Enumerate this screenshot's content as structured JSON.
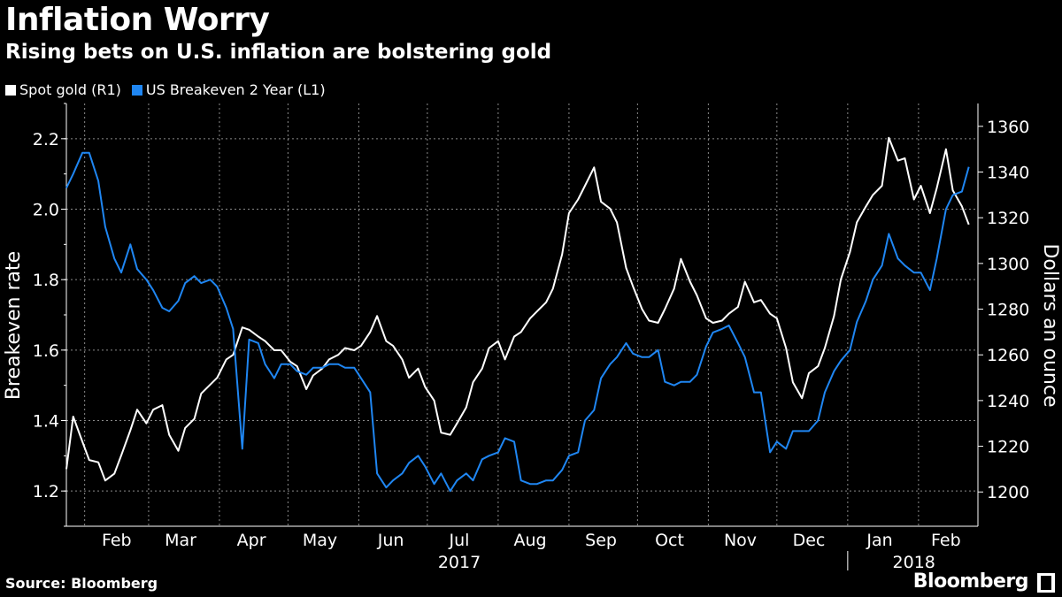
{
  "header": {
    "title": "Inflation Worry",
    "subtitle": "Rising bets on U.S. inflation are bolstering gold"
  },
  "footer": {
    "source": "Source: Bloomberg",
    "brand": "Bloomberg"
  },
  "colors": {
    "gold": "#ffffff",
    "breakeven": "#1f86f2",
    "grid": "#8a8a8a",
    "background": "#000000"
  },
  "chart_data": {
    "type": "line",
    "title": "Inflation Worry",
    "subtitle": "Rising bets on U.S. inflation are bolstering gold",
    "ylabel_left": "Breakeven rate",
    "ylabel_right": "Dollars an ounce",
    "ylim_left": [
      1.1,
      2.3
    ],
    "ylim_right": [
      1185,
      1370
    ],
    "yticks_left": [
      "1.2",
      "1.4",
      "1.6",
      "1.8",
      "2.0",
      "2.2"
    ],
    "yticks_right": [
      "1200",
      "1220",
      "1240",
      "1260",
      "1280",
      "1300",
      "1320",
      "1340",
      "1360"
    ],
    "xlim": [
      "2017-01-24",
      "2018-02-27"
    ],
    "x_month_labels": [
      {
        "label": "Feb",
        "date": "2017-02-15"
      },
      {
        "label": "Mar",
        "date": "2017-03-15"
      },
      {
        "label": "Apr",
        "date": "2017-04-15"
      },
      {
        "label": "May",
        "date": "2017-05-15"
      },
      {
        "label": "Jun",
        "date": "2017-06-15"
      },
      {
        "label": "Jul",
        "date": "2017-07-15"
      },
      {
        "label": "Aug",
        "date": "2017-08-15"
      },
      {
        "label": "Sep",
        "date": "2017-09-15"
      },
      {
        "label": "Oct",
        "date": "2017-10-15"
      },
      {
        "label": "Nov",
        "date": "2017-11-15"
      },
      {
        "label": "Dec",
        "date": "2017-12-15"
      },
      {
        "label": "Jan",
        "date": "2018-01-15"
      },
      {
        "label": "Feb",
        "date": "2018-02-13"
      }
    ],
    "x_year_labels": [
      {
        "label": "2017",
        "date": "2017-07-15"
      },
      {
        "label": "2018",
        "date": "2018-01-30"
      }
    ],
    "legend_position": "top-left",
    "grid": true,
    "series": [
      {
        "name": "Spot gold (R1)",
        "axis": "right",
        "color": "#ffffff",
        "x": [
          "2017-01-24",
          "2017-01-27",
          "2017-01-31",
          "2017-02-03",
          "2017-02-07",
          "2017-02-10",
          "2017-02-14",
          "2017-02-17",
          "2017-02-21",
          "2017-02-24",
          "2017-02-28",
          "2017-03-03",
          "2017-03-07",
          "2017-03-10",
          "2017-03-14",
          "2017-03-17",
          "2017-03-21",
          "2017-03-24",
          "2017-03-28",
          "2017-03-31",
          "2017-04-04",
          "2017-04-07",
          "2017-04-11",
          "2017-04-14",
          "2017-04-18",
          "2017-04-21",
          "2017-04-25",
          "2017-04-28",
          "2017-05-02",
          "2017-05-05",
          "2017-05-09",
          "2017-05-12",
          "2017-05-16",
          "2017-05-19",
          "2017-05-23",
          "2017-05-26",
          "2017-05-30",
          "2017-06-02",
          "2017-06-06",
          "2017-06-09",
          "2017-06-13",
          "2017-06-16",
          "2017-06-20",
          "2017-06-23",
          "2017-06-27",
          "2017-06-30",
          "2017-07-04",
          "2017-07-07",
          "2017-07-11",
          "2017-07-14",
          "2017-07-18",
          "2017-07-21",
          "2017-07-25",
          "2017-07-28",
          "2017-08-01",
          "2017-08-04",
          "2017-08-08",
          "2017-08-11",
          "2017-08-15",
          "2017-08-18",
          "2017-08-22",
          "2017-08-25",
          "2017-08-29",
          "2017-09-01",
          "2017-09-05",
          "2017-09-08",
          "2017-09-12",
          "2017-09-15",
          "2017-09-19",
          "2017-09-22",
          "2017-09-26",
          "2017-09-29",
          "2017-10-03",
          "2017-10-06",
          "2017-10-10",
          "2017-10-13",
          "2017-10-17",
          "2017-10-20",
          "2017-10-24",
          "2017-10-27",
          "2017-10-31",
          "2017-11-03",
          "2017-11-07",
          "2017-11-10",
          "2017-11-14",
          "2017-11-17",
          "2017-11-21",
          "2017-11-24",
          "2017-11-28",
          "2017-12-01",
          "2017-12-05",
          "2017-12-08",
          "2017-12-12",
          "2017-12-15",
          "2017-12-19",
          "2017-12-22",
          "2017-12-26",
          "2017-12-29",
          "2018-01-02",
          "2018-01-05",
          "2018-01-09",
          "2018-01-12",
          "2018-01-16",
          "2018-01-19",
          "2018-01-23",
          "2018-01-26",
          "2018-01-30",
          "2018-02-02",
          "2018-02-06",
          "2018-02-09",
          "2018-02-13",
          "2018-02-16",
          "2018-02-20",
          "2018-02-23"
        ],
        "values": [
          1210,
          1233,
          1222,
          1214,
          1213,
          1205,
          1208,
          1216,
          1227,
          1236,
          1230,
          1236,
          1238,
          1225,
          1218,
          1228,
          1232,
          1243,
          1247,
          1250,
          1258,
          1260,
          1272,
          1271,
          1268,
          1266,
          1262,
          1262,
          1257,
          1255,
          1245,
          1251,
          1254,
          1258,
          1260,
          1263,
          1262,
          1264,
          1270,
          1277,
          1266,
          1264,
          1258,
          1250,
          1254,
          1246,
          1240,
          1226,
          1225,
          1230,
          1237,
          1248,
          1254,
          1263,
          1266,
          1258,
          1268,
          1270,
          1276,
          1279,
          1283,
          1289,
          1304,
          1322,
          1328,
          1334,
          1342,
          1327,
          1324,
          1318,
          1298,
          1290,
          1280,
          1275,
          1274,
          1280,
          1289,
          1302,
          1292,
          1286,
          1276,
          1274,
          1275,
          1278,
          1281,
          1292,
          1283,
          1284,
          1278,
          1276,
          1263,
          1248,
          1241,
          1252,
          1255,
          1263,
          1277,
          1293,
          1305,
          1318,
          1325,
          1330,
          1334,
          1355,
          1345,
          1346,
          1328,
          1334,
          1322,
          1333,
          1350,
          1332,
          1325,
          1317
        ]
      },
      {
        "name": "US Breakeven 2 Year (L1)",
        "axis": "left",
        "color": "#1f86f2",
        "x": [
          "2017-01-24",
          "2017-01-27",
          "2017-01-31",
          "2017-02-03",
          "2017-02-07",
          "2017-02-10",
          "2017-02-14",
          "2017-02-17",
          "2017-02-21",
          "2017-02-24",
          "2017-02-28",
          "2017-03-03",
          "2017-03-07",
          "2017-03-10",
          "2017-03-14",
          "2017-03-17",
          "2017-03-21",
          "2017-03-24",
          "2017-03-28",
          "2017-03-31",
          "2017-04-04",
          "2017-04-07",
          "2017-04-11",
          "2017-04-14",
          "2017-04-18",
          "2017-04-21",
          "2017-04-25",
          "2017-04-28",
          "2017-05-02",
          "2017-05-05",
          "2017-05-09",
          "2017-05-12",
          "2017-05-16",
          "2017-05-19",
          "2017-05-23",
          "2017-05-26",
          "2017-05-30",
          "2017-06-02",
          "2017-06-06",
          "2017-06-09",
          "2017-06-13",
          "2017-06-16",
          "2017-06-20",
          "2017-06-23",
          "2017-06-27",
          "2017-06-30",
          "2017-07-04",
          "2017-07-07",
          "2017-07-11",
          "2017-07-14",
          "2017-07-18",
          "2017-07-21",
          "2017-07-25",
          "2017-07-28",
          "2017-08-01",
          "2017-08-04",
          "2017-08-08",
          "2017-08-11",
          "2017-08-15",
          "2017-08-18",
          "2017-08-22",
          "2017-08-25",
          "2017-08-29",
          "2017-09-01",
          "2017-09-05",
          "2017-09-08",
          "2017-09-12",
          "2017-09-15",
          "2017-09-19",
          "2017-09-22",
          "2017-09-26",
          "2017-09-29",
          "2017-10-03",
          "2017-10-06",
          "2017-10-10",
          "2017-10-13",
          "2017-10-17",
          "2017-10-20",
          "2017-10-24",
          "2017-10-27",
          "2017-10-31",
          "2017-11-03",
          "2017-11-07",
          "2017-11-10",
          "2017-11-14",
          "2017-11-17",
          "2017-11-21",
          "2017-11-24",
          "2017-11-28",
          "2017-12-01",
          "2017-12-05",
          "2017-12-08",
          "2017-12-12",
          "2017-12-15",
          "2017-12-19",
          "2017-12-22",
          "2017-12-26",
          "2017-12-29",
          "2018-01-02",
          "2018-01-05",
          "2018-01-09",
          "2018-01-12",
          "2018-01-16",
          "2018-01-19",
          "2018-01-23",
          "2018-01-26",
          "2018-01-30",
          "2018-02-02",
          "2018-02-06",
          "2018-02-09",
          "2018-02-13",
          "2018-02-16",
          "2018-02-20",
          "2018-02-23"
        ],
        "values": [
          2.06,
          2.1,
          2.16,
          2.16,
          2.08,
          1.95,
          1.86,
          1.82,
          1.9,
          1.83,
          1.8,
          1.77,
          1.72,
          1.71,
          1.74,
          1.79,
          1.81,
          1.79,
          1.8,
          1.78,
          1.72,
          1.66,
          1.32,
          1.63,
          1.62,
          1.56,
          1.52,
          1.56,
          1.56,
          1.54,
          1.53,
          1.55,
          1.55,
          1.56,
          1.56,
          1.55,
          1.55,
          1.52,
          1.48,
          1.25,
          1.21,
          1.23,
          1.25,
          1.28,
          1.3,
          1.27,
          1.22,
          1.25,
          1.2,
          1.23,
          1.25,
          1.23,
          1.29,
          1.3,
          1.31,
          1.35,
          1.34,
          1.23,
          1.22,
          1.22,
          1.23,
          1.23,
          1.26,
          1.3,
          1.31,
          1.4,
          1.43,
          1.52,
          1.56,
          1.58,
          1.62,
          1.59,
          1.58,
          1.58,
          1.6,
          1.51,
          1.5,
          1.51,
          1.51,
          1.53,
          1.61,
          1.65,
          1.66,
          1.67,
          1.62,
          1.58,
          1.48,
          1.48,
          1.31,
          1.34,
          1.32,
          1.37,
          1.37,
          1.37,
          1.4,
          1.48,
          1.54,
          1.57,
          1.6,
          1.68,
          1.74,
          1.8,
          1.84,
          1.93,
          1.86,
          1.84,
          1.82,
          1.82,
          1.77,
          1.86,
          2.0,
          2.04,
          2.05,
          2.12
        ]
      }
    ]
  }
}
